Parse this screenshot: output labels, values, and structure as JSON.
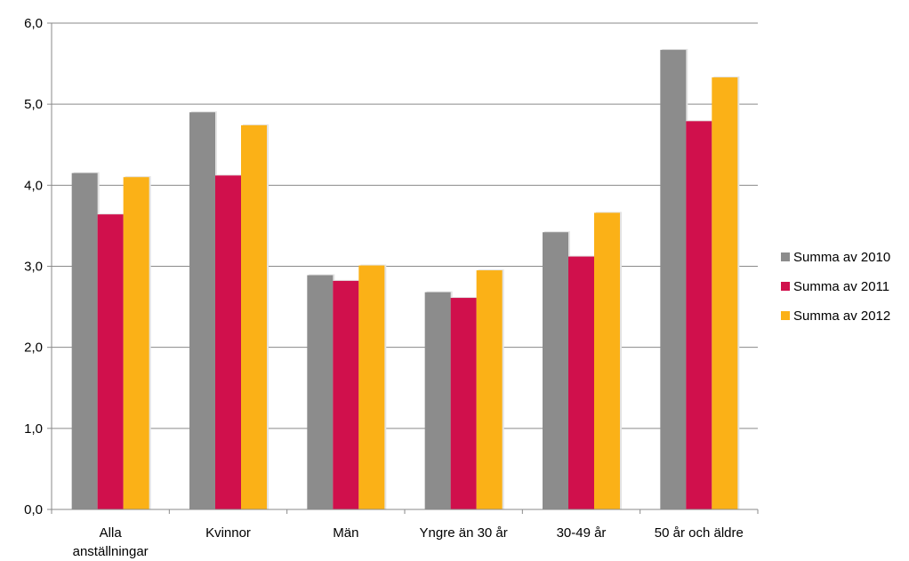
{
  "chart_data": {
    "type": "bar",
    "title": "",
    "xlabel": "",
    "ylabel": "",
    "categories": [
      "Alla anställningar",
      "Kvinnor",
      "Män",
      "Yngre än 30 år",
      "30-49 år",
      "50 år och äldre"
    ],
    "category_lines": [
      [
        "Alla",
        "anställningar"
      ],
      [
        "Kvinnor"
      ],
      [
        "Män"
      ],
      [
        "Yngre än 30 år"
      ],
      [
        "30-49 år"
      ],
      [
        "50 år och äldre"
      ]
    ],
    "series": [
      {
        "name": "Summa av 2010",
        "color": "#8c8c8c",
        "values": [
          4.15,
          4.9,
          2.89,
          2.68,
          3.42,
          5.67
        ]
      },
      {
        "name": "Summa av 2011",
        "color": "#d0104c",
        "values": [
          3.64,
          4.12,
          2.82,
          2.61,
          3.12,
          4.79
        ]
      },
      {
        "name": "Summa av 2012",
        "color": "#fbb117",
        "values": [
          4.1,
          4.74,
          3.01,
          2.95,
          3.66,
          5.33
        ]
      }
    ],
    "ylim": [
      0,
      6
    ],
    "yticks": [
      "0,0",
      "1,0",
      "2,0",
      "3,0",
      "4,0",
      "5,0",
      "6,0"
    ],
    "grid": true,
    "legend_position": "right"
  }
}
